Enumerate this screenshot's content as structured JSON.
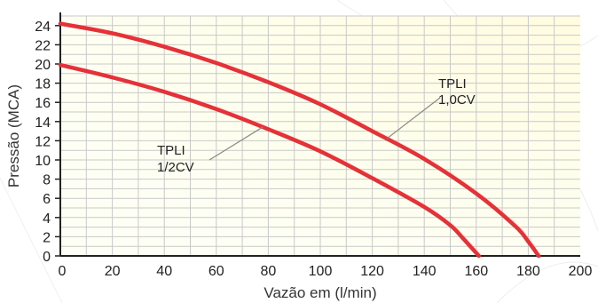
{
  "chart_data": {
    "type": "line",
    "title": "",
    "xlabel": "Vazão em (l/min)",
    "ylabel": "Pressão (MCA)",
    "xlim": [
      0,
      200
    ],
    "ylim": [
      0,
      25
    ],
    "xticks": [
      0,
      20,
      40,
      60,
      80,
      100,
      120,
      140,
      160,
      180,
      200
    ],
    "yticks": [
      0,
      2,
      4,
      6,
      8,
      10,
      12,
      14,
      16,
      18,
      20,
      22,
      24
    ],
    "grid": true,
    "series": [
      {
        "name": "TPLI 1,0CV",
        "x": [
          0,
          20,
          40,
          60,
          80,
          100,
          120,
          140,
          160,
          175,
          180,
          184
        ],
        "y": [
          24.2,
          23.2,
          21.8,
          20.1,
          18.1,
          15.8,
          13.0,
          10.1,
          6.5,
          3.1,
          1.5,
          0
        ]
      },
      {
        "name": "TPLI 1/2CV",
        "x": [
          0,
          20,
          40,
          60,
          80,
          100,
          120,
          140,
          150,
          155,
          161
        ],
        "y": [
          19.9,
          18.6,
          17.1,
          15.3,
          13.2,
          10.9,
          8.1,
          5.1,
          3.2,
          1.8,
          0
        ]
      }
    ],
    "annotations": [
      {
        "lines": [
          "TPLI",
          "1,0CV"
        ],
        "points_to": "TPLI 1,0CV"
      },
      {
        "lines": [
          "TPLI",
          "1/2CV"
        ],
        "points_to": "TPLI 1/2CV"
      }
    ],
    "colors": {
      "curve": "#e53138",
      "plot_bg": "#fefde9",
      "grid": "#c9c9c9",
      "axis": "#222222",
      "leader": "#888888"
    }
  }
}
